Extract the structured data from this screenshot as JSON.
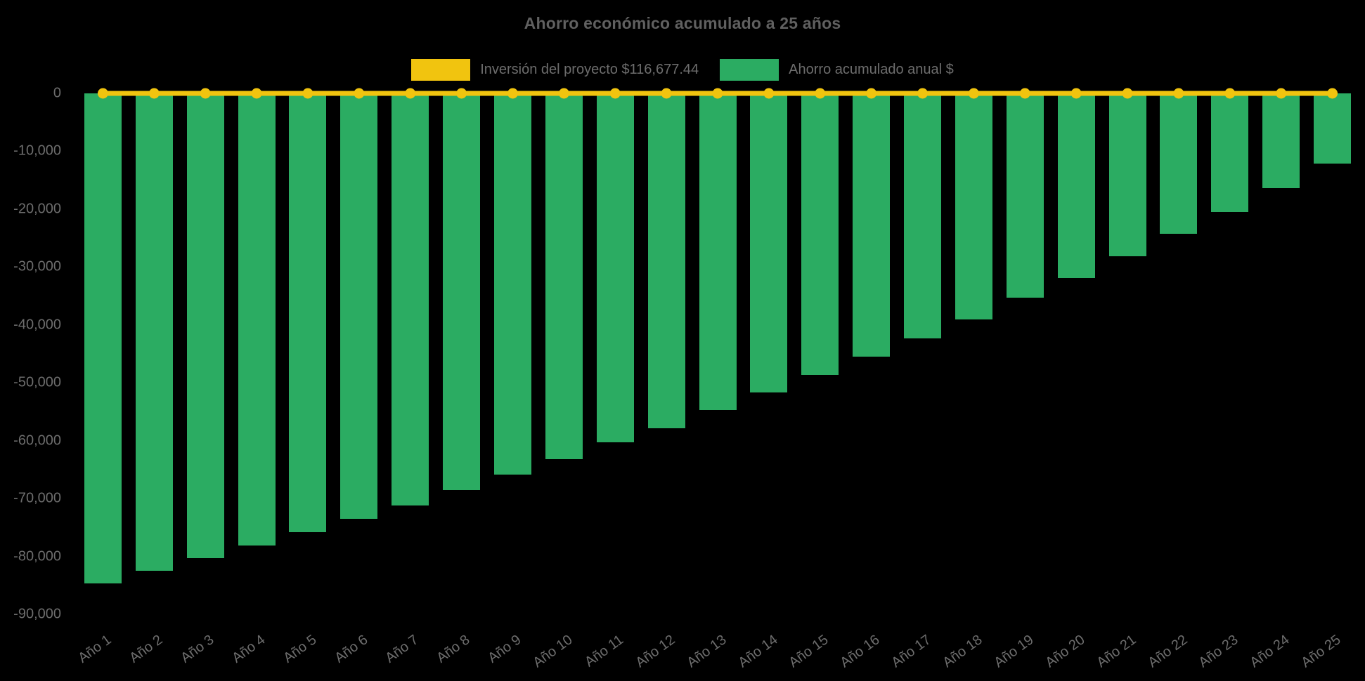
{
  "title": "Ahorro económico acumulado a 25 años",
  "legend": [
    {
      "label": "Inversión del proyecto $116,677.44",
      "color": "#F1C40F"
    },
    {
      "label": "Ahorro acumulado anual $",
      "color": "#2BAC62"
    }
  ],
  "colors": {
    "background": "#000000",
    "bar_green": "#2BAC62",
    "line_yellow": "#F1C40F",
    "title_text": "#606060",
    "axis_text": "#6d6d6d"
  },
  "chart_data": {
    "type": "bar",
    "title": "Ahorro económico acumulado a 25 años",
    "categories": [
      "Año 1",
      "Año 2",
      "Año 3",
      "Año 4",
      "Año 5",
      "Año 6",
      "Año 7",
      "Año 8",
      "Año 9",
      "Año 10",
      "Año 11",
      "Año 12",
      "Año 13",
      "Año 14",
      "Año 15",
      "Año 16",
      "Año 17",
      "Año 18",
      "Año 19",
      "Año 20",
      "Año 21",
      "Año 22",
      "Año 23",
      "Año 24",
      "Año 25"
    ],
    "series": [
      {
        "name": "Inversión del proyecto $116,677.44",
        "type": "line",
        "color": "#F1C40F",
        "marker": "circle",
        "values": [
          0,
          0,
          0,
          0,
          0,
          0,
          0,
          0,
          0,
          0,
          0,
          0,
          0,
          0,
          0,
          0,
          0,
          0,
          0,
          0,
          0,
          0,
          0,
          0,
          0
        ]
      },
      {
        "name": "Ahorro acumulado anual $",
        "type": "bar",
        "color": "#2BAC62",
        "values": [
          -84700,
          -82500,
          -80300,
          -78100,
          -75800,
          -73500,
          -71200,
          -68500,
          -65900,
          -63200,
          -60300,
          -57800,
          -54700,
          -51700,
          -48700,
          -45500,
          -42300,
          -39000,
          -35300,
          -31900,
          -28200,
          -24300,
          -20500,
          -16400,
          -12100
        ]
      }
    ],
    "xlabel": "",
    "ylabel": "",
    "ylim": [
      -90000,
      0
    ],
    "yticks": [
      0,
      -10000,
      -20000,
      -30000,
      -40000,
      -50000,
      -60000,
      -70000,
      -80000,
      -90000
    ],
    "ytick_labels": [
      "0",
      "-10,000",
      "-20,000",
      "-30,000",
      "-40,000",
      "-50,000",
      "-60,000",
      "-70,000",
      "-80,000",
      "-90,000"
    ],
    "grid": false,
    "legend_position": "top",
    "x_label_rotation_deg": -36
  }
}
